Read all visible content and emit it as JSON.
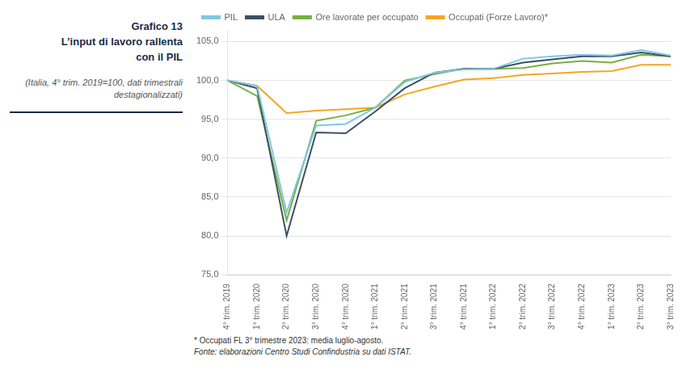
{
  "chart_data": {
    "type": "line",
    "title": [
      "Grafico 13",
      "L’input di lavoro rallenta",
      "con il PIL"
    ],
    "subtitle": [
      "(Italia, 4° trim. 2019=100, dati trimestrali",
      "destagionalizzati)"
    ],
    "annotations": [
      "* Occupati FL 3° trimestre 2023: media luglio-agosto.",
      "Fonte: elaborazioni Centro Studi Confindustria su dati ISTAT."
    ],
    "categories": [
      "4° trim. 2019",
      "1° trim. 2020",
      "2° trim. 2020",
      "3° trim. 2020",
      "4° trim. 2020",
      "1° trim. 2021",
      "2° trim. 2021",
      "3° trim. 2021",
      "4° trim. 2021",
      "1° trim. 2022",
      "2° trim. 2022",
      "3° trim. 2022",
      "4° trim. 2022",
      "1° trim. 2023",
      "2° trim. 2023",
      "3° trim. 2023"
    ],
    "series": [
      {
        "name": "PIL",
        "color": "#7EC8E3",
        "values": [
          100.0,
          99.3,
          83.0,
          94.2,
          94.4,
          96.5,
          99.8,
          101.0,
          101.4,
          101.5,
          102.8,
          103.1,
          103.3,
          103.2,
          103.9,
          103.2
        ]
      },
      {
        "name": "ULA",
        "color": "#3D4F63",
        "values": [
          100.0,
          99.0,
          80.0,
          93.3,
          93.2,
          96.0,
          99.0,
          101.0,
          101.5,
          101.5,
          102.3,
          102.7,
          103.1,
          103.1,
          103.6,
          103.1
        ]
      },
      {
        "name": "Ore lavorate per occupato",
        "color": "#76B041",
        "values": [
          100.0,
          98.0,
          82.0,
          94.8,
          95.5,
          96.5,
          100.0,
          100.8,
          101.5,
          101.5,
          101.6,
          102.2,
          102.5,
          102.3,
          103.3,
          103.1
        ]
      },
      {
        "name": "Occupati (Forze Lavoro)*",
        "color": "#F5A623",
        "values": [
          100.0,
          99.3,
          95.8,
          96.1,
          96.3,
          96.5,
          98.2,
          99.2,
          100.1,
          100.3,
          100.7,
          100.9,
          101.1,
          101.2,
          102.0,
          102.0
        ]
      }
    ],
    "ylim": [
      75.0,
      106.5
    ],
    "yticks": [
      {
        "value": 75.0,
        "label": "75,0"
      },
      {
        "value": 80.0,
        "label": "80,0"
      },
      {
        "value": 85.0,
        "label": "85,0"
      },
      {
        "value": 90.0,
        "label": "90,0"
      },
      {
        "value": 95.0,
        "label": "95,0"
      },
      {
        "value": 100.0,
        "label": "100,0"
      },
      {
        "value": 105.0,
        "label": "105,0"
      }
    ],
    "grid": true,
    "legend": "top"
  }
}
